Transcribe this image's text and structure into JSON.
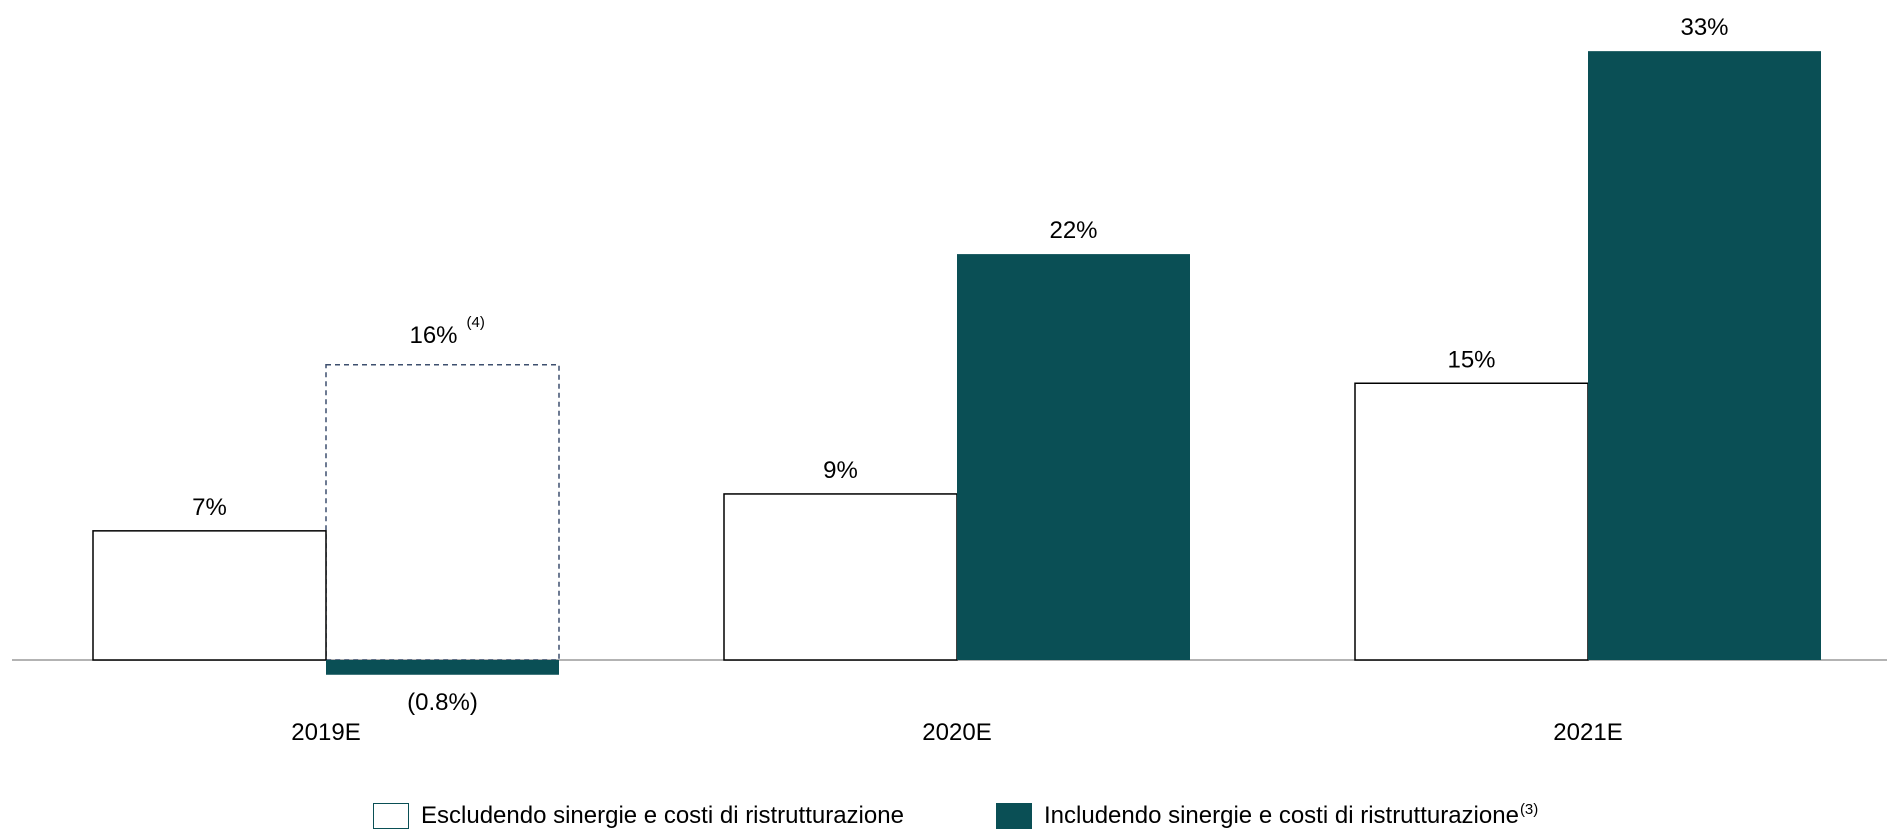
{
  "chart_data": {
    "type": "bar",
    "categories": [
      "2019E",
      "2020E",
      "2021E"
    ],
    "series": [
      {
        "name": "Escludendo sinergie e costi di ristrutturazione",
        "values": [
          7,
          9,
          15
        ],
        "labels": [
          "7%",
          "9%",
          "15%"
        ],
        "style": "outline"
      },
      {
        "name": "Includendo sinergie e costi di ristrutturazione",
        "name_sup": "(3)",
        "values": [
          -0.8,
          22,
          33
        ],
        "labels": [
          "(0.8%)",
          "22%",
          "33%"
        ],
        "style": "filled"
      }
    ],
    "annotations": [
      {
        "category": "2019E",
        "series": 1,
        "value": 16,
        "label": "16%",
        "sup": "(4)",
        "style": "dashed-outline"
      }
    ],
    "ylim": [
      -0.8,
      33
    ],
    "colors": {
      "fill": "#0a4f55",
      "outline": "#000000",
      "dashed": "#3d4f6e",
      "axis": "#9a9a9a"
    }
  }
}
